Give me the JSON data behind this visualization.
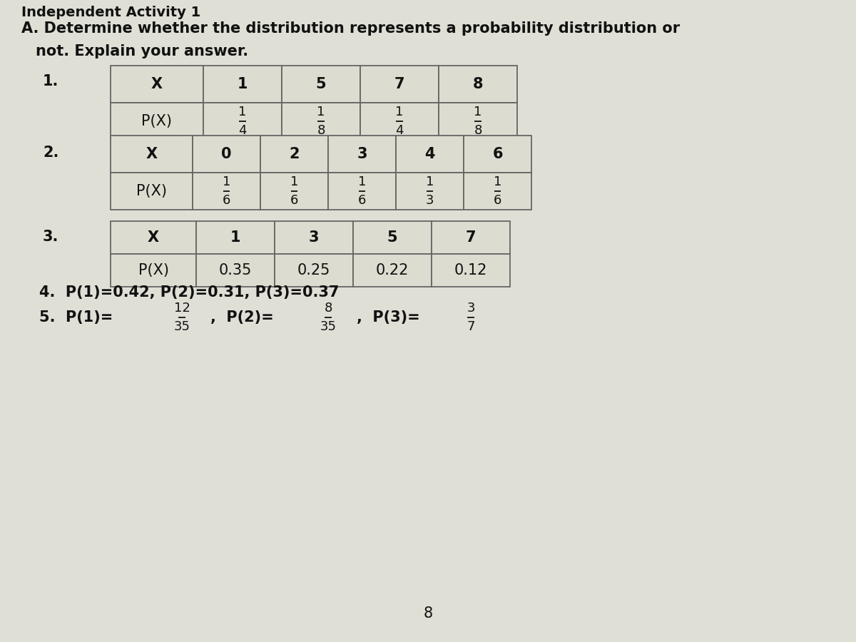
{
  "bg_color": "#ccccc4",
  "content_bg": "#e8e8e0",
  "table_bg": "#dcdcd0",
  "table_border": "#666666",
  "font_color": "#111111",
  "heading_line1": "A. Determine whether the distribution represents a probability distribution or",
  "heading_line2": "not. Explain your answer.",
  "table1_header": [
    "X",
    "1",
    "5",
    "7",
    "8"
  ],
  "table1_row": [
    "P(X)",
    "1/4",
    "1/8",
    "1/4",
    "1/8"
  ],
  "table2_header": [
    "X",
    "0",
    "2",
    "3",
    "4",
    "6"
  ],
  "table2_row": [
    "P(X)",
    "1/6",
    "1/6",
    "1/6",
    "1/3",
    "1/6"
  ],
  "table3_header": [
    "X",
    "1",
    "3",
    "5",
    "7"
  ],
  "table3_row": [
    "P(X)",
    "0.35",
    "0.25",
    "0.22",
    "0.12"
  ],
  "item4": "4.  P(1)=0.42, P(2)=0.31, P(3)=0.37",
  "footer": "8",
  "title_partial": "Independent Activity 1"
}
